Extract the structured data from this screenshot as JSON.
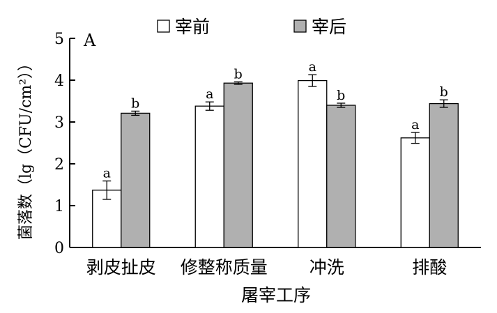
{
  "chart_data": {
    "type": "bar",
    "panel_label": "A",
    "categories": [
      "剥皮扯皮",
      "修整称质量",
      "冲洗",
      "排酸"
    ],
    "series": [
      {
        "name": "宰前",
        "color": "#ffffff",
        "values": [
          1.37,
          3.38,
          3.99,
          2.62
        ],
        "errors": [
          0.22,
          0.1,
          0.14,
          0.13
        ],
        "sig": [
          "a",
          "a",
          "a",
          "a"
        ]
      },
      {
        "name": "宰后",
        "color": "#b0b0b0",
        "values": [
          3.21,
          3.93,
          3.4,
          3.44
        ],
        "errors": [
          0.05,
          0.03,
          0.05,
          0.09
        ],
        "sig": [
          "b",
          "b",
          "b",
          "b"
        ]
      }
    ],
    "xlabel": "屠宰工序",
    "ylabel": "菌落数（lg（CFU/cm²））",
    "ylim": [
      0,
      5
    ],
    "yticks": [
      "0",
      "1",
      "2",
      "3",
      "4",
      "5"
    ],
    "legend_position": "top",
    "grid": false
  }
}
